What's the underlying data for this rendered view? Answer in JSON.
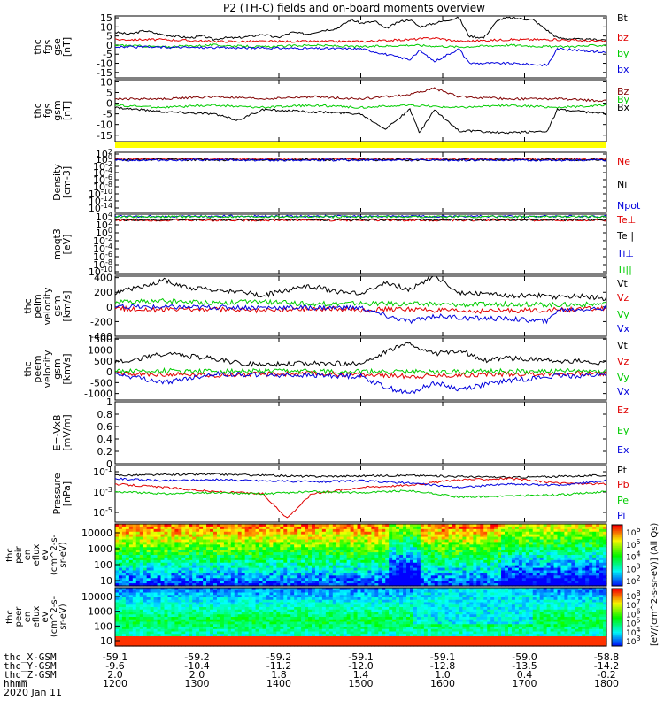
{
  "title": "P2 (TH-C) fields and on-board moments overview",
  "colors": {
    "black": "#000000",
    "red": "#e00000",
    "green": "#00cc00",
    "blue": "#0000dd",
    "yellow": "#ffff00",
    "brown": "#800000"
  },
  "chart_data": [
    {
      "type": "line",
      "panel": "fgs-gse",
      "ylabel_lines": [
        "thc",
        "fgs",
        "gse",
        "[nT]"
      ],
      "yticks": [
        15,
        10,
        5,
        0,
        -5,
        -10,
        -15
      ],
      "ylim": [
        -18,
        16
      ],
      "legend": [
        {
          "label": "Bt",
          "color": "#000000"
        },
        {
          "label": "bz",
          "color": "#e00000"
        },
        {
          "label": "by",
          "color": "#00cc00"
        },
        {
          "label": "bx",
          "color": "#0000dd"
        }
      ],
      "series": [
        {
          "name": "Bt",
          "color": "#000000",
          "x": [
            0,
            0.03,
            0.06,
            0.09,
            0.12,
            0.15,
            0.18,
            0.2,
            0.22,
            0.25,
            0.28,
            0.3,
            0.33,
            0.36,
            0.39,
            0.42,
            0.45,
            0.48,
            0.5,
            0.53,
            0.55,
            0.58,
            0.6,
            0.62,
            0.65,
            0.68,
            0.7,
            0.72,
            0.75,
            0.78,
            0.8,
            0.85,
            0.9,
            0.95,
            1.0
          ],
          "y": [
            7,
            6,
            8,
            6,
            5,
            4,
            5,
            3,
            4,
            4,
            5,
            6,
            4,
            7,
            6,
            8,
            9,
            14,
            12,
            13,
            9,
            13,
            14,
            10,
            12,
            14,
            15,
            5,
            4,
            14,
            15,
            14,
            4,
            3,
            3
          ]
        },
        {
          "name": "bz",
          "color": "#e00000",
          "x": [
            0,
            0.1,
            0.2,
            0.3,
            0.4,
            0.5,
            0.6,
            0.65,
            0.7,
            0.8,
            0.9,
            1.0
          ],
          "y": [
            3,
            3,
            2,
            2,
            2,
            2,
            3,
            4,
            2,
            3,
            3,
            2
          ]
        },
        {
          "name": "by",
          "color": "#00cc00",
          "x": [
            0,
            0.1,
            0.2,
            0.3,
            0.4,
            0.5,
            0.6,
            0.7,
            0.8,
            0.9,
            1.0
          ],
          "y": [
            0,
            -1,
            0,
            -1,
            0,
            -1,
            0,
            -1,
            0,
            -1,
            0
          ]
        },
        {
          "name": "bx",
          "color": "#0000dd",
          "x": [
            0,
            0.5,
            0.55,
            0.6,
            0.62,
            0.65,
            0.7,
            0.72,
            0.8,
            0.88,
            0.9,
            0.95,
            1.0
          ],
          "y": [
            -1,
            -2,
            -5,
            -8,
            -3,
            -9,
            -2,
            -10,
            -10,
            -11,
            -2,
            -3,
            -4
          ]
        }
      ]
    },
    {
      "type": "line",
      "panel": "fgs-gsm",
      "ylabel_lines": [
        "thc",
        "fgs",
        "gsm",
        "[nT]"
      ],
      "yticks": [
        10,
        5,
        0,
        -5,
        -10,
        -15
      ],
      "ylim": [
        -18,
        11
      ],
      "legend": [
        {
          "label": "Bz",
          "color": "#800000"
        },
        {
          "label": "By",
          "color": "#00cc00"
        },
        {
          "label": "Bx",
          "color": "#000000"
        }
      ],
      "series": [
        {
          "name": "Bz",
          "color": "#800000",
          "x": [
            0,
            0.1,
            0.2,
            0.3,
            0.4,
            0.5,
            0.6,
            0.65,
            0.7,
            0.8,
            0.9,
            1.0
          ],
          "y": [
            2,
            2,
            3,
            2,
            3,
            2,
            4,
            7,
            3,
            2,
            2,
            1
          ]
        },
        {
          "name": "By",
          "color": "#00cc00",
          "x": [
            0,
            0.1,
            0.2,
            0.3,
            0.4,
            0.5,
            0.6,
            0.7,
            0.8,
            0.9,
            1.0
          ],
          "y": [
            -1,
            -2,
            -1,
            -2,
            -1,
            -2,
            -1,
            -2,
            -1,
            -2,
            -1
          ]
        },
        {
          "name": "Bx",
          "color": "#000000",
          "x": [
            0,
            0.1,
            0.2,
            0.25,
            0.3,
            0.4,
            0.5,
            0.55,
            0.6,
            0.62,
            0.65,
            0.7,
            0.72,
            0.8,
            0.88,
            0.9,
            0.95,
            1.0
          ],
          "y": [
            -2,
            -4,
            -5,
            -8,
            -3,
            -4,
            -5,
            -12,
            -3,
            -14,
            -3,
            -13,
            -13,
            -14,
            -13,
            -3,
            -4,
            -5
          ]
        }
      ]
    },
    {
      "type": "line",
      "panel": "density",
      "ylabel_lines": [
        "Density",
        "[cm-3]"
      ],
      "yticks": [
        "10^2",
        "10^0",
        "10^-2",
        "10^-4",
        "10^-6",
        "10^-8",
        "10^-10",
        "10^-12",
        "10^-14"
      ],
      "ylim": [
        -14,
        2
      ],
      "legend": [
        {
          "label": "Ne",
          "color": "#e00000"
        },
        {
          "label": "Ni",
          "color": "#000000"
        },
        {
          "label": "Npot",
          "color": "#0000dd"
        }
      ],
      "series": [
        {
          "name": "Ne",
          "color": "#e00000",
          "x": [
            0,
            1
          ],
          "y": [
            0.2,
            0.2
          ]
        },
        {
          "name": "Ni",
          "color": "#000000",
          "x": [
            0,
            1
          ],
          "y": [
            0,
            0
          ]
        },
        {
          "name": "Npot",
          "color": "#0000dd",
          "x": [
            0,
            1
          ],
          "y": [
            -0.1,
            -0.1
          ]
        }
      ]
    },
    {
      "type": "line",
      "panel": "temperature",
      "ylabel_lines": [
        "moqt3",
        "[eV]"
      ],
      "yticks": [
        "10^4",
        "10^2",
        "10^0",
        "10^-2",
        "10^-4",
        "10^-6",
        "10^-8",
        "10^-10"
      ],
      "ylim": [
        -10,
        4
      ],
      "legend": [
        {
          "label": "Te⊥",
          "color": "#e00000"
        },
        {
          "label": "Te||",
          "color": "#000000"
        },
        {
          "label": "Ti⊥",
          "color": "#0000dd"
        },
        {
          "label": "Ti||",
          "color": "#00cc00"
        }
      ],
      "series": [
        {
          "name": "Te⊥",
          "color": "#e00000",
          "x": [
            0,
            1
          ],
          "y": [
            2.6,
            2.6
          ]
        },
        {
          "name": "Te||",
          "color": "#000000",
          "x": [
            0,
            1
          ],
          "y": [
            2.7,
            2.7
          ]
        },
        {
          "name": "Ti⊥",
          "color": "#0000dd",
          "x": [
            0,
            1
          ],
          "y": [
            3.5,
            3.5
          ]
        },
        {
          "name": "Ti||",
          "color": "#00cc00",
          "x": [
            0,
            1
          ],
          "y": [
            3.4,
            3.4
          ]
        }
      ]
    },
    {
      "type": "line",
      "panel": "peim-velocity",
      "ylabel_lines": [
        "thc",
        "peim",
        "velocity",
        "gsm",
        "[km/s]"
      ],
      "yticks": [
        400,
        200,
        0,
        -200,
        -400
      ],
      "ylim": [
        -400,
        420
      ],
      "legend": [
        {
          "label": "Vt",
          "color": "#000000"
        },
        {
          "label": "Vz",
          "color": "#e00000"
        },
        {
          "label": "Vy",
          "color": "#00cc00"
        },
        {
          "label": "Vx",
          "color": "#0000dd"
        }
      ],
      "series": [
        {
          "name": "Vt",
          "color": "#000000",
          "x": [
            0,
            0.05,
            0.1,
            0.15,
            0.2,
            0.25,
            0.3,
            0.35,
            0.4,
            0.45,
            0.5,
            0.55,
            0.6,
            0.65,
            0.7,
            0.75,
            0.8,
            0.85,
            0.9,
            0.95,
            1.0
          ],
          "y": [
            150,
            250,
            330,
            220,
            200,
            180,
            120,
            200,
            250,
            180,
            150,
            300,
            200,
            400,
            160,
            150,
            120,
            130,
            100,
            120,
            80
          ]
        },
        {
          "name": "Vz",
          "color": "#e00000",
          "x": [
            0,
            0.1,
            0.2,
            0.3,
            0.4,
            0.5,
            0.6,
            0.7,
            0.8,
            0.9,
            1.0
          ],
          "y": [
            -20,
            -40,
            -30,
            -50,
            -20,
            -40,
            -30,
            -60,
            -50,
            -40,
            -20
          ]
        },
        {
          "name": "Vy",
          "color": "#00cc00",
          "x": [
            0,
            0.1,
            0.2,
            0.3,
            0.4,
            0.5,
            0.6,
            0.7,
            0.8,
            0.9,
            1.0
          ],
          "y": [
            60,
            80,
            60,
            70,
            40,
            50,
            40,
            30,
            40,
            30,
            40
          ]
        },
        {
          "name": "Vx",
          "color": "#0000dd",
          "x": [
            0,
            0.5,
            0.55,
            0.6,
            0.65,
            0.7,
            0.8,
            0.88,
            0.9,
            1.0
          ],
          "y": [
            0,
            -10,
            -120,
            -200,
            -120,
            -150,
            -160,
            -200,
            -40,
            -20
          ]
        }
      ]
    },
    {
      "type": "line",
      "panel": "peem-velocity",
      "ylabel_lines": [
        "thc",
        "peem",
        "velocity",
        "gsm",
        "[km/s]"
      ],
      "yticks": [
        1500,
        1000,
        500,
        0,
        -500,
        -1000
      ],
      "ylim": [
        -1300,
        1550
      ],
      "legend": [
        {
          "label": "Vt",
          "color": "#000000"
        },
        {
          "label": "Vz",
          "color": "#e00000"
        },
        {
          "label": "Vy",
          "color": "#00cc00"
        },
        {
          "label": "Vx",
          "color": "#0000dd"
        }
      ],
      "series": [
        {
          "name": "Vt",
          "color": "#000000",
          "x": [
            0,
            0.05,
            0.1,
            0.15,
            0.2,
            0.25,
            0.3,
            0.4,
            0.5,
            0.55,
            0.6,
            0.65,
            0.7,
            0.75,
            0.8,
            0.9,
            1.0
          ],
          "y": [
            300,
            500,
            700,
            600,
            500,
            300,
            200,
            300,
            250,
            800,
            1200,
            700,
            900,
            400,
            500,
            400,
            300
          ]
        },
        {
          "name": "Vz",
          "color": "#e00000",
          "x": [
            0,
            0.2,
            0.4,
            0.6,
            0.8,
            1.0
          ],
          "y": [
            -100,
            -150,
            -80,
            -200,
            -100,
            -80
          ]
        },
        {
          "name": "Vy",
          "color": "#00cc00",
          "x": [
            0,
            0.2,
            0.4,
            0.6,
            0.8,
            1.0
          ],
          "y": [
            50,
            30,
            20,
            0,
            20,
            30
          ]
        },
        {
          "name": "Vx",
          "color": "#0000dd",
          "x": [
            0,
            0.1,
            0.2,
            0.5,
            0.55,
            0.6,
            0.65,
            0.7,
            0.8,
            0.9,
            1.0
          ],
          "y": [
            -100,
            -500,
            -100,
            -200,
            -700,
            -1000,
            -500,
            -800,
            -400,
            -200,
            -150
          ]
        }
      ]
    },
    {
      "type": "line",
      "panel": "efield",
      "ylabel_lines": [
        "E=-VxB",
        "[mV/m]"
      ],
      "yticks": [
        1.0,
        0.8,
        0.6,
        0.4,
        0.2,
        0.0
      ],
      "ylim": [
        0,
        1
      ],
      "legend": [
        {
          "label": "Ez",
          "color": "#e00000"
        },
        {
          "label": "Ey",
          "color": "#00cc00"
        },
        {
          "label": "Ex",
          "color": "#0000dd"
        }
      ],
      "series": []
    },
    {
      "type": "line",
      "panel": "pressure",
      "ylabel_lines": [
        "Pressure",
        "[nPa]"
      ],
      "yticks": [
        "10^-1",
        "10^-3",
        "10^-5"
      ],
      "ylim": [
        -5.8,
        -0.6
      ],
      "legend": [
        {
          "label": "Pt",
          "color": "#000000"
        },
        {
          "label": "Pb",
          "color": "#e00000"
        },
        {
          "label": "Pe",
          "color": "#00cc00"
        },
        {
          "label": "Pi",
          "color": "#0000dd"
        }
      ],
      "series": [
        {
          "name": "Pt",
          "color": "#000000",
          "x": [
            0,
            0.2,
            0.4,
            0.6,
            0.8,
            1.0
          ],
          "y": [
            -1.5,
            -1.4,
            -1.6,
            -1.5,
            -1.7,
            -1.5
          ]
        },
        {
          "name": "Pb",
          "color": "#e00000",
          "x": [
            0,
            0.1,
            0.2,
            0.3,
            0.35,
            0.4,
            0.5,
            0.6,
            0.7,
            0.8,
            0.9,
            1.0
          ],
          "y": [
            -2.3,
            -2.6,
            -3.0,
            -3.2,
            -5.4,
            -3.2,
            -2.6,
            -2.4,
            -1.9,
            -1.8,
            -2.2,
            -2.3
          ]
        },
        {
          "name": "Pe",
          "color": "#00cc00",
          "x": [
            0,
            0.1,
            0.2,
            0.3,
            0.4,
            0.5,
            0.6,
            0.7,
            0.8,
            0.9,
            1.0
          ],
          "y": [
            -3.0,
            -3.2,
            -3.1,
            -3.2,
            -3.0,
            -3.1,
            -2.9,
            -3.5,
            -3.4,
            -3.3,
            -3.0
          ]
        },
        {
          "name": "Pi",
          "color": "#0000dd",
          "x": [
            0,
            0.1,
            0.2,
            0.3,
            0.4,
            0.5,
            0.6,
            0.7,
            0.8,
            0.9,
            1.0
          ],
          "y": [
            -1.8,
            -2.0,
            -1.9,
            -2.0,
            -2.1,
            -2.0,
            -2.2,
            -2.6,
            -2.3,
            -2.4,
            -2.0
          ]
        }
      ]
    },
    {
      "type": "heatmap",
      "panel": "peir-eflux",
      "ylabel_lines": [
        "thc",
        "peir",
        "en",
        "eflux",
        "eV",
        "(cm^2-s-",
        "sr-eV)"
      ],
      "yticks": [
        10000,
        1000,
        100,
        10
      ]
    },
    {
      "type": "heatmap",
      "panel": "peer-eflux",
      "ylabel_lines": [
        "thc",
        "peer",
        "en",
        "eflux",
        "eV",
        "(cm^2-s-",
        "sr-eV)"
      ],
      "yticks": [
        10000,
        1000,
        100,
        10
      ]
    }
  ],
  "colorbar": {
    "ticks_top": [
      "10^6",
      "10^5",
      "10^4",
      "10^3",
      "10^2"
    ],
    "ticks_bottom": [
      "10^8",
      "10^7",
      "10^6",
      "10^5",
      "10^4",
      "10^3"
    ],
    "label": "[eV/(cm^2-s-sr-eV)] (All Qs)"
  },
  "ephemeris": {
    "rows": [
      {
        "label": "thc_X-GSM",
        "values": [
          "-59.1",
          "-59.2",
          "-59.2",
          "-59.1",
          "-59.1",
          "-59.0",
          "-58.8"
        ]
      },
      {
        "label": "thc_Y-GSM",
        "values": [
          "-9.6",
          "-10.4",
          "-11.2",
          "-12.0",
          "-12.8",
          "-13.5",
          "-14.2"
        ]
      },
      {
        "label": "thc_Z-GSM",
        "values": [
          "2.0",
          "2.0",
          "1.8",
          "1.4",
          "1.0",
          "0.4",
          "-0.2"
        ]
      },
      {
        "label": "hhmm",
        "values": [
          "1200",
          "1300",
          "1400",
          "1500",
          "1600",
          "1700",
          "1800"
        ]
      }
    ],
    "date": "2020 Jan 11"
  }
}
